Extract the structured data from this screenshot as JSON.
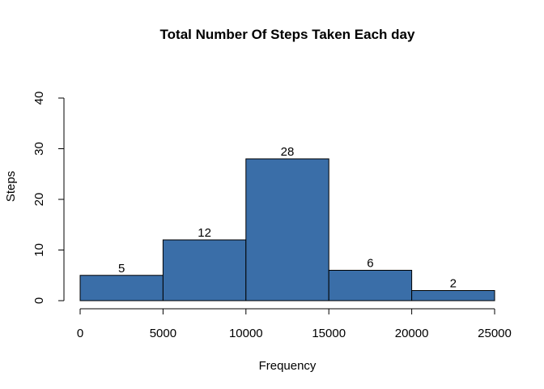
{
  "chart_data": {
    "type": "bar",
    "title": "Total Number Of Steps Taken Each day",
    "xlabel": "Frequency",
    "ylabel": "Steps",
    "bins": [
      {
        "from": 0,
        "to": 5000,
        "value": 5
      },
      {
        "from": 5000,
        "to": 10000,
        "value": 12
      },
      {
        "from": 10000,
        "to": 15000,
        "value": 28
      },
      {
        "from": 15000,
        "to": 20000,
        "value": 6
      },
      {
        "from": 20000,
        "to": 25000,
        "value": 2
      }
    ],
    "data_labels": [
      "5",
      "12",
      "28",
      "6",
      "2"
    ],
    "xlim": [
      0,
      25000
    ],
    "ylim": [
      0,
      40
    ],
    "x_ticks": [
      0,
      5000,
      10000,
      15000,
      20000,
      25000
    ],
    "x_tick_labels": [
      "0",
      "5000",
      "10000",
      "15000",
      "20000",
      "25000"
    ],
    "y_ticks": [
      0,
      10,
      20,
      30,
      40
    ],
    "y_tick_labels": [
      "0",
      "10",
      "20",
      "30",
      "40"
    ],
    "bar_color": "#3a6ea8",
    "bar_border_color": "#000000",
    "grid": false,
    "legend": "none"
  }
}
